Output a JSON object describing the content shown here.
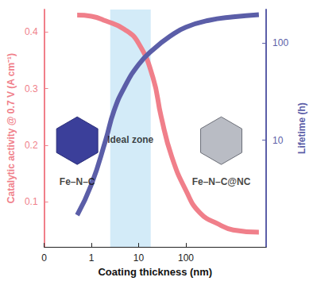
{
  "chart_data": {
    "type": "line",
    "xlabel": "Coating thickness (nm)",
    "ylabel": "Catalytic activity @ 0.7 V (A cm⁻¹)",
    "y2label": "Lifetime (h)",
    "log": [
      "x",
      "y2"
    ],
    "grid": false,
    "xlim": [
      0.1,
      5000
    ],
    "xticks": [
      {
        "value": 0.1,
        "label": "0"
      },
      1,
      10,
      100
    ],
    "ylim": [
      0.02,
      0.44
    ],
    "yticks": [
      0.1,
      0.2,
      0.3,
      0.4
    ],
    "y2lim": [
      0.8,
      220
    ],
    "y2ticks": [
      10,
      100
    ],
    "series": [
      {
        "name": "Catalytic activity",
        "color": "#f07f8a",
        "axis": "y",
        "x": [
          0.5,
          1,
          2,
          5,
          10,
          20,
          30,
          50,
          100,
          200,
          500,
          1000,
          3500
        ],
        "values": [
          0.43,
          0.428,
          0.42,
          0.405,
          0.38,
          0.32,
          0.25,
          0.18,
          0.12,
          0.08,
          0.06,
          0.05,
          0.046
        ]
      },
      {
        "name": "Lifetime",
        "color": "#5b5ea8",
        "axis": "y2",
        "x": [
          0.5,
          1,
          2,
          3,
          5,
          10,
          20,
          50,
          100,
          300,
          1000,
          3500
        ],
        "values": [
          1.7,
          3.5,
          10,
          20,
          35,
          60,
          85,
          120,
          145,
          170,
          185,
          195
        ]
      }
    ],
    "bands": [
      {
        "x": [
          2.5,
          18
        ],
        "color": "#d3ebf8"
      }
    ],
    "annotations": [
      {
        "text": "Fe–N–C",
        "x": 0.5,
        "y": 0.135
      },
      {
        "text": "Fe–N–C@NC",
        "x": 560,
        "y": 0.135
      },
      {
        "text": "Ideal zone",
        "x": 6.7,
        "y": 0.21
      }
    ]
  }
}
